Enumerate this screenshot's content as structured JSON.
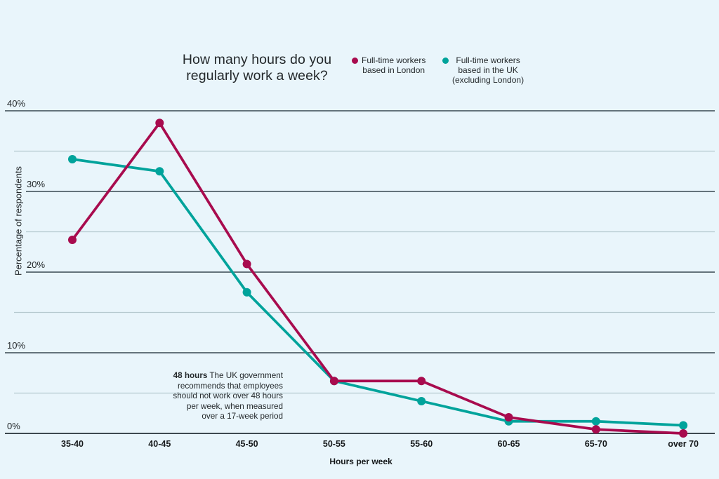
{
  "page": {
    "background_color": "#e9f5fb"
  },
  "title": {
    "lines": [
      "How many hours do you",
      "regularly work a week?"
    ]
  },
  "legend": {
    "items": [
      {
        "color": "#a80b4e",
        "lines": [
          "Full-time workers",
          "based in London"
        ]
      },
      {
        "color": "#00a39b",
        "lines": [
          "Full-time workers",
          "based in the UK",
          "(excluding London)"
        ]
      }
    ]
  },
  "annotation": {
    "bold_label": "48 hours",
    "lines": [
      "The UK government",
      "recommends that employees",
      "should not work over 48 hours",
      "per week, when measured",
      "over a 17-week period"
    ]
  },
  "chart_data": {
    "type": "line",
    "title": "How many hours do you regularly work a week?",
    "categories": [
      "35-40",
      "40-45",
      "45-50",
      "50-55",
      "55-60",
      "60-65",
      "65-70",
      "over 70"
    ],
    "series": [
      {
        "name": "Full-time workers based in London",
        "color": "#a80b4e",
        "values": [
          24,
          38.5,
          21,
          6.5,
          6.5,
          2,
          0.5,
          0
        ]
      },
      {
        "name": "Full-time workers based in the UK (excluding London)",
        "color": "#00a39b",
        "values": [
          34,
          32.5,
          17.5,
          6.5,
          4,
          1.5,
          1.5,
          1
        ]
      }
    ],
    "xlabel": "Hours per week",
    "ylabel": "Percentage of respondents",
    "ylim": [
      0,
      40
    ],
    "yticks_labeled": [
      0,
      10,
      20,
      30,
      40
    ],
    "ytick_labels": [
      "0%",
      "10%",
      "20%",
      "30%",
      "40%"
    ],
    "grid_step": 5,
    "grid": true,
    "legend_position": "top"
  },
  "colors": {
    "zero_axis_line": "#3d484f",
    "major_gridline": "#64737b",
    "minor_gridline": "#b6c9cf",
    "text": "#22272a"
  }
}
